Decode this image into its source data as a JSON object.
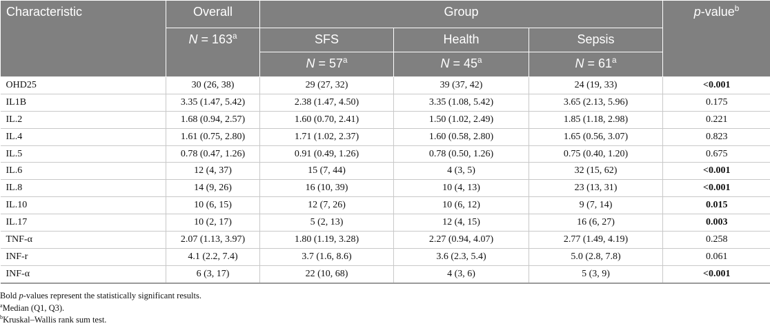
{
  "header": {
    "characteristic": "Characteristic",
    "overall": "Overall",
    "overall_n": {
      "n": "N",
      "value": " = 163",
      "note": "a"
    },
    "group": "Group",
    "groups": [
      {
        "name": "SFS",
        "n": {
          "n": "N",
          "value": " = 57",
          "note": "a"
        }
      },
      {
        "name": "Health",
        "n": {
          "n": "N",
          "value": " = 45",
          "note": "a"
        }
      },
      {
        "name": "Sepsis",
        "n": {
          "n": "N",
          "value": " = 61",
          "note": "a"
        }
      }
    ],
    "p_value": {
      "p": "p",
      "rest": "-value",
      "note": "b"
    }
  },
  "rows": [
    {
      "cells": [
        "OHD25",
        "30 (26, 38)",
        "29 (27, 32)",
        "39 (37, 42)",
        "24 (19, 33)",
        "<0.001"
      ],
      "bold": true
    },
    {
      "cells": [
        "IL1B",
        "3.35 (1.47, 5.42)",
        "2.38 (1.47, 4.50)",
        "3.35 (1.08, 5.42)",
        "3.65 (2.13, 5.96)",
        "0.175"
      ],
      "bold": false
    },
    {
      "cells": [
        "IL.2",
        "1.68 (0.94, 2.57)",
        "1.60 (0.70, 2.41)",
        "1.50 (1.02, 2.49)",
        "1.85 (1.18, 2.98)",
        "0.221"
      ],
      "bold": false
    },
    {
      "cells": [
        "IL.4",
        "1.61 (0.75, 2.80)",
        "1.71 (1.02, 2.37)",
        "1.60 (0.58, 2.80)",
        "1.65 (0.56, 3.07)",
        "0.823"
      ],
      "bold": false
    },
    {
      "cells": [
        "IL.5",
        "0.78 (0.47, 1.26)",
        "0.91 (0.49, 1.26)",
        "0.78 (0.50, 1.26)",
        "0.75 (0.40, 1.20)",
        "0.675"
      ],
      "bold": false
    },
    {
      "cells": [
        "IL.6",
        "12 (4, 37)",
        "15 (7, 44)",
        "4 (3, 5)",
        "32 (15, 62)",
        "<0.001"
      ],
      "bold": true
    },
    {
      "cells": [
        "IL.8",
        "14 (9, 26)",
        "16 (10, 39)",
        "10 (4, 13)",
        "23 (13, 31)",
        "<0.001"
      ],
      "bold": true
    },
    {
      "cells": [
        "IL.10",
        "10 (6, 15)",
        "12 (7, 26)",
        "10 (6, 12)",
        "9 (7, 14)",
        "0.015"
      ],
      "bold": true
    },
    {
      "cells": [
        "IL.17",
        "10 (2, 17)",
        "5 (2, 13)",
        "12 (4, 15)",
        "16 (6, 27)",
        "0.003"
      ],
      "bold": true
    },
    {
      "cells": [
        "TNF-α",
        "2.07 (1.13, 3.97)",
        "1.80 (1.19, 3.28)",
        "2.27 (0.94, 4.07)",
        "2.77 (1.49, 4.19)",
        "0.258"
      ],
      "bold": false
    },
    {
      "cells": [
        "INF-r",
        "4.1 (2.2, 7.4)",
        "3.7 (1.6, 8.6)",
        "3.6 (2.3, 5.4)",
        "5.0 (2.8, 7.8)",
        "0.061"
      ],
      "bold": false
    },
    {
      "cells": [
        "INF-α",
        "6 (3, 17)",
        "22 (10, 68)",
        "4 (3, 6)",
        "5 (3, 9)",
        "<0.001"
      ],
      "bold": true
    }
  ],
  "footnotes": {
    "bold_note": {
      "before": "Bold ",
      "italic": "p",
      "after": "-values represent the statistically significant results."
    },
    "notes": [
      {
        "mark": "a",
        "text": "Median (Q1, Q3)."
      },
      {
        "mark": "b",
        "text": "Kruskal–Wallis rank sum test."
      }
    ]
  }
}
